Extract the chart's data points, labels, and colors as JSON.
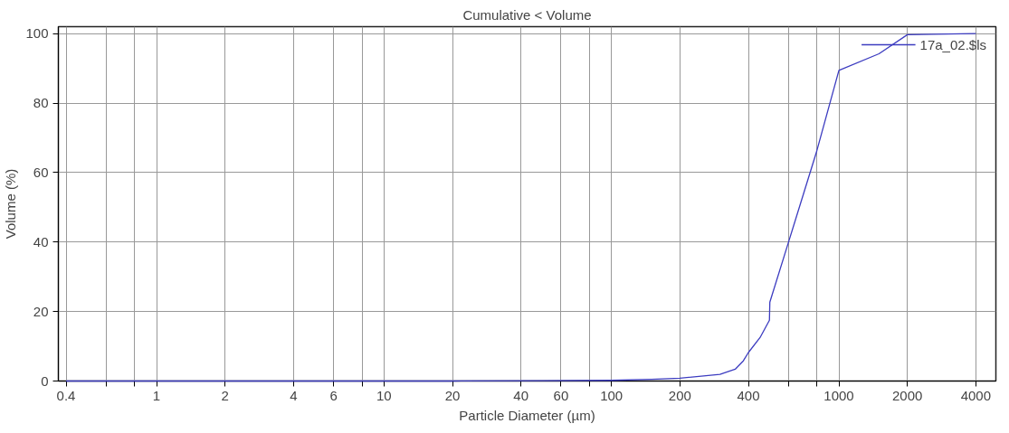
{
  "chart_data": {
    "type": "line",
    "title": "Cumulative < Volume",
    "xlabel": "Particle Diameter (µm)",
    "ylabel": "Volume (%)",
    "log": "x",
    "grid": true,
    "legend": "top right",
    "marker": "none",
    "line_style": "solid",
    "xlim": [
      0.37,
      4900
    ],
    "ylim": [
      0,
      102
    ],
    "xticks": [
      0.4,
      {
        "value": 0.6,
        "label": null
      },
      {
        "value": 0.8,
        "label": null
      },
      1,
      2,
      4,
      6,
      {
        "value": 8,
        "label": null
      },
      10,
      20,
      40,
      60,
      {
        "value": 80,
        "label": null
      },
      100,
      200,
      400,
      {
        "value": 600,
        "label": null
      },
      {
        "value": 800,
        "label": null
      },
      1000,
      2000,
      4000
    ],
    "yticks": [
      0,
      20,
      40,
      60,
      80,
      100
    ],
    "series": [
      {
        "name": "17a_02.$ls",
        "color": "#3c3cc0",
        "x": [
          0.4,
          1,
          10,
          20,
          50,
          100,
          150,
          200,
          300,
          350,
          380,
          400,
          450,
          495,
          497,
          600,
          800,
          1000,
          1500,
          2000,
          4000
        ],
        "values": [
          0,
          0,
          0,
          0,
          0.1,
          0.2,
          0.5,
          0.8,
          1.9,
          3.4,
          5.8,
          8.2,
          12.5,
          17.5,
          22.7,
          39.9,
          66.3,
          89.4,
          94.2,
          99.7,
          100
        ]
      }
    ]
  }
}
